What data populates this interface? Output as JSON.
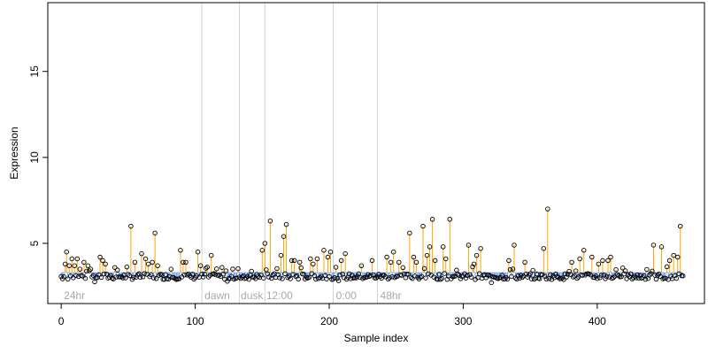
{
  "chart_data": {
    "type": "scatter",
    "title": "",
    "xlabel": "Sample index",
    "ylabel": "Expression",
    "xlim": [
      -10,
      480
    ],
    "ylim": [
      1.5,
      19
    ],
    "xticks": [
      0,
      100,
      200,
      300,
      400
    ],
    "yticks": [
      5,
      10,
      15
    ],
    "xtick_labels": [
      "0",
      "100",
      "200",
      "300",
      "400"
    ],
    "ytick_labels": [
      "5",
      "10",
      "15"
    ],
    "baseline": 3.3,
    "grid": false,
    "colors": {
      "above_stem": "#FFA500",
      "below_stem": "#6495ED",
      "point_edge": "#000000",
      "divider": "#D3D3D3",
      "segment_label": "#A9A9A9"
    },
    "dividers": [
      105,
      133,
      152,
      203,
      236
    ],
    "segment_labels": [
      {
        "text": "24hr",
        "x": 2
      },
      {
        "text": "dawn",
        "x": 107
      },
      {
        "text": "dusk",
        "x": 134
      },
      {
        "text": "12:00",
        "x": 153
      },
      {
        "text": "0:00",
        "x": 205
      },
      {
        "text": "48hr",
        "x": 238
      }
    ],
    "n_points": 465,
    "peaks": [
      [
        3,
        3.8
      ],
      [
        4,
        4.5
      ],
      [
        6,
        3.7
      ],
      [
        8,
        4.1
      ],
      [
        10,
        3.7
      ],
      [
        12,
        4.1
      ],
      [
        14,
        3.5
      ],
      [
        17,
        3.9
      ],
      [
        20,
        3.7
      ],
      [
        22,
        3.5
      ],
      [
        29,
        4.2
      ],
      [
        31,
        4.0
      ],
      [
        33,
        3.8
      ],
      [
        40,
        3.6
      ],
      [
        52,
        6.0
      ],
      [
        55,
        3.9
      ],
      [
        60,
        4.4
      ],
      [
        63,
        4.1
      ],
      [
        65,
        3.8
      ],
      [
        68,
        3.9
      ],
      [
        70,
        5.6
      ],
      [
        72,
        3.7
      ],
      [
        82,
        3.5
      ],
      [
        89,
        4.6
      ],
      [
        91,
        3.9
      ],
      [
        93,
        3.9
      ],
      [
        102,
        4.5
      ],
      [
        104,
        3.7
      ],
      [
        112,
        4.3
      ],
      [
        120,
        3.6
      ],
      [
        123,
        3.4
      ],
      [
        150,
        4.6
      ],
      [
        152,
        5.0
      ],
      [
        156,
        6.3
      ],
      [
        164,
        4.3
      ],
      [
        166,
        5.4
      ],
      [
        168,
        6.1
      ],
      [
        172,
        4.0
      ],
      [
        174,
        4.0
      ],
      [
        178,
        3.9
      ],
      [
        186,
        4.1
      ],
      [
        188,
        3.8
      ],
      [
        191,
        4.1
      ],
      [
        196,
        4.6
      ],
      [
        199,
        4.2
      ],
      [
        201,
        4.5
      ],
      [
        209,
        4.0
      ],
      [
        212,
        4.4
      ],
      [
        224,
        3.7
      ],
      [
        232,
        4.0
      ],
      [
        243,
        4.2
      ],
      [
        246,
        3.9
      ],
      [
        248,
        4.5
      ],
      [
        252,
        3.9
      ],
      [
        260,
        5.6
      ],
      [
        263,
        4.2
      ],
      [
        265,
        3.9
      ],
      [
        270,
        6.0
      ],
      [
        273,
        4.3
      ],
      [
        275,
        4.8
      ],
      [
        277,
        6.4
      ],
      [
        279,
        4.0
      ],
      [
        285,
        4.8
      ],
      [
        287,
        4.1
      ],
      [
        290,
        6.4
      ],
      [
        304,
        4.9
      ],
      [
        308,
        3.8
      ],
      [
        310,
        4.3
      ],
      [
        313,
        4.7
      ],
      [
        334,
        4.0
      ],
      [
        338,
        4.9
      ],
      [
        346,
        3.9
      ],
      [
        360,
        4.7
      ],
      [
        363,
        7.0
      ],
      [
        381,
        3.9
      ],
      [
        387,
        4.1
      ],
      [
        390,
        4.6
      ],
      [
        396,
        4.2
      ],
      [
        401,
        3.8
      ],
      [
        404,
        4.0
      ],
      [
        408,
        4.0
      ],
      [
        410,
        4.2
      ],
      [
        442,
        4.9
      ],
      [
        448,
        4.8
      ],
      [
        454,
        4.0
      ],
      [
        457,
        4.3
      ],
      [
        460,
        4.2
      ],
      [
        462,
        6.0
      ]
    ]
  }
}
